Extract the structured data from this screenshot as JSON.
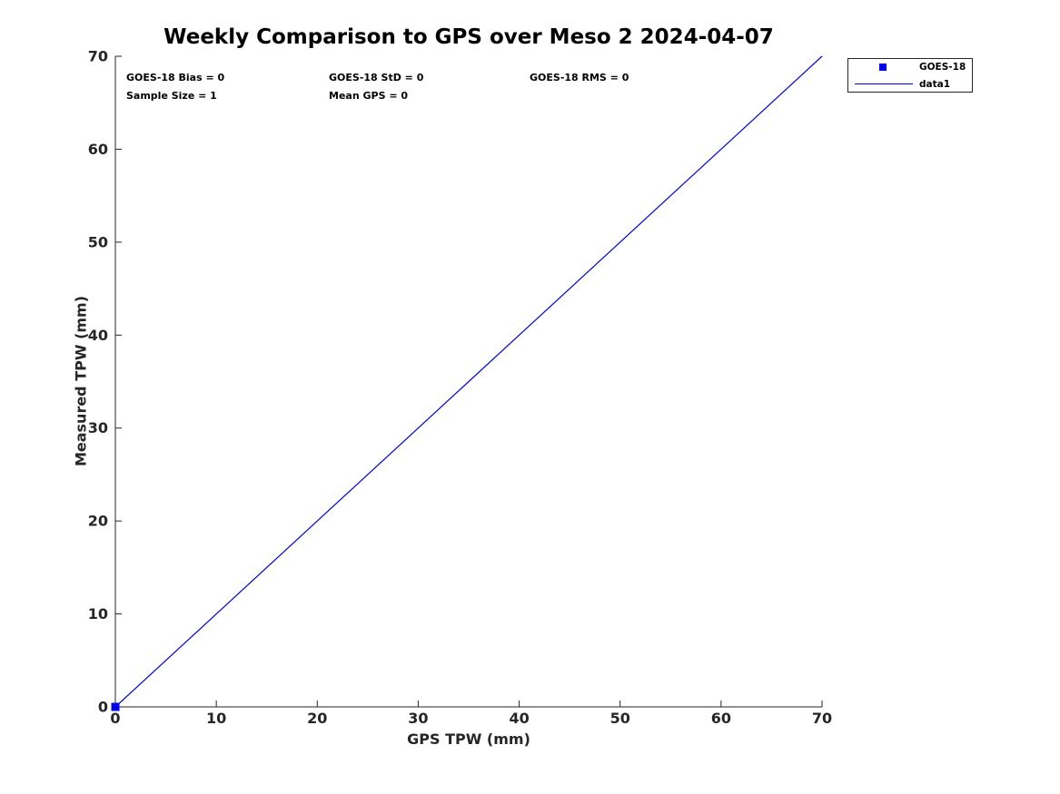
{
  "title": "Weekly Comparison to GPS over Meso 2 2024-04-07",
  "colors": {
    "series_blue": "#0000EE",
    "axis": "#262626",
    "text": "#000000",
    "background": "#FFFFFF"
  },
  "stats": {
    "bias": "GOES-18 Bias = 0",
    "std": "GOES-18 StD = 0",
    "rms": "GOES-18 RMS = 0",
    "sample_size": "Sample Size = 1",
    "mean_gps": "Mean GPS = 0"
  },
  "axes": {
    "xlabel": "GPS TPW (mm)",
    "ylabel": "Measured TPW (mm)"
  },
  "legend": {
    "position": "outside-top-right",
    "entries": [
      {
        "label": "GOES-18",
        "glyph": "square-marker"
      },
      {
        "label": "data1",
        "glyph": "line-sample"
      }
    ]
  },
  "chart_data": {
    "type": "line",
    "title": "Weekly Comparison to GPS over Meso 2 2024-04-07",
    "xlabel": "GPS TPW (mm)",
    "ylabel": "Measured TPW (mm)",
    "xlim": [
      0,
      70
    ],
    "ylim": [
      0,
      70
    ],
    "xticks": [
      0,
      10,
      20,
      30,
      40,
      50,
      60,
      70
    ],
    "yticks": [
      0,
      10,
      20,
      30,
      40,
      50,
      60,
      70
    ],
    "grid": false,
    "box": false,
    "tick_direction": "in",
    "legend_position": "outside-top-right",
    "series": [
      {
        "name": "GOES-18",
        "type": "scatter",
        "marker": "square",
        "color": "#0000EE",
        "x": [
          0
        ],
        "y": [
          0
        ]
      },
      {
        "name": "data1",
        "type": "line",
        "color": "#0000EE",
        "x": [
          0,
          70
        ],
        "y": [
          0,
          70
        ]
      }
    ],
    "annotations": [
      "GOES-18 Bias = 0",
      "GOES-18 StD = 0",
      "GOES-18 RMS = 0",
      "Sample Size = 1",
      "Mean GPS = 0"
    ]
  }
}
